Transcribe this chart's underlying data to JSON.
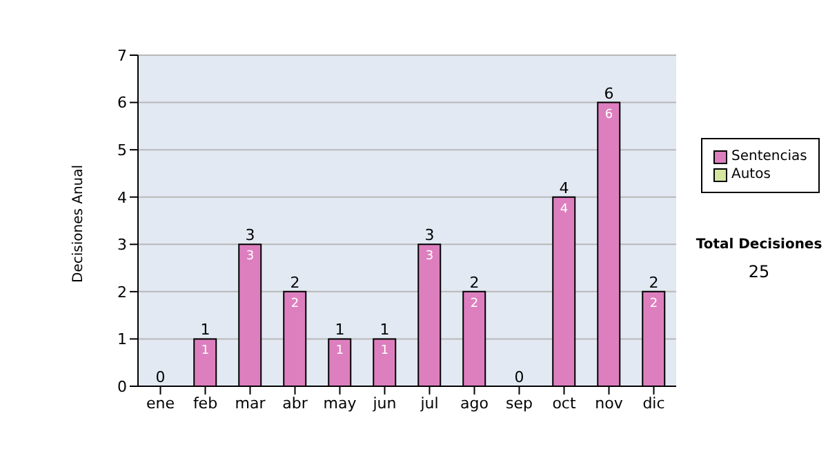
{
  "chart_data": {
    "type": "bar",
    "ylabel": "Decisiones Anual",
    "categories": [
      "ene",
      "feb",
      "mar",
      "abr",
      "may",
      "jun",
      "jul",
      "ago",
      "sep",
      "oct",
      "nov",
      "dic"
    ],
    "series": [
      {
        "name": "Sentencias",
        "color": "#dd7fbf",
        "values": [
          0,
          1,
          3,
          2,
          1,
          1,
          3,
          2,
          0,
          4,
          6,
          2
        ],
        "value_labels": [
          null,
          "1",
          "3",
          "2",
          "1",
          "1",
          "3",
          "2",
          null,
          "4",
          "6",
          "2"
        ]
      },
      {
        "name": "Autos",
        "color": "#d4e6a0",
        "values": [
          0,
          0,
          0,
          0,
          0,
          0,
          0,
          0,
          0,
          0,
          0,
          0
        ]
      }
    ],
    "stacked": true,
    "totals": [
      "0",
      "1",
      "3",
      "2",
      "1",
      "1",
      "3",
      "2",
      "0",
      "4",
      "6",
      "2"
    ],
    "ylim": [
      0,
      7
    ],
    "yticks": [
      0,
      1,
      2,
      3,
      4,
      5,
      6,
      7
    ],
    "grid": "y",
    "legend": "right",
    "annotations": [
      "Total Decisiones",
      "25"
    ]
  }
}
